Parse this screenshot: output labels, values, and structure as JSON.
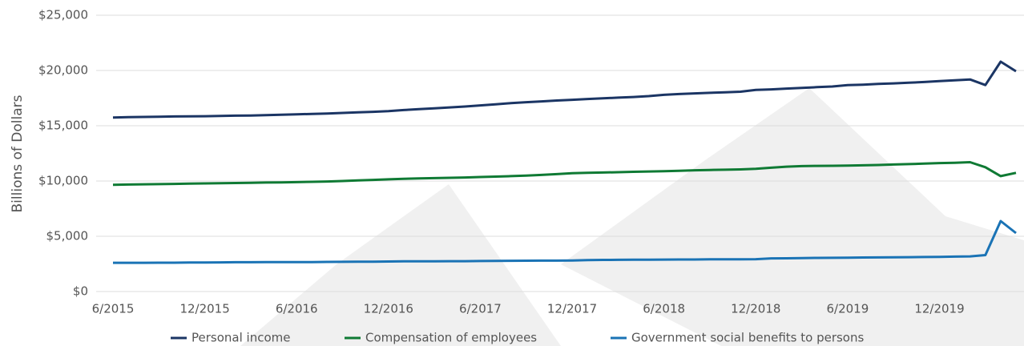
{
  "chart_data": {
    "type": "line",
    "y_label": "Billions of Dollars",
    "categories": [
      "6/2015",
      null,
      null,
      null,
      null,
      null,
      "12/2015",
      null,
      null,
      null,
      null,
      null,
      "6/2016",
      null,
      null,
      null,
      null,
      null,
      "12/2016",
      null,
      null,
      null,
      null,
      null,
      "6/2017",
      null,
      null,
      null,
      null,
      null,
      "12/2017",
      null,
      null,
      null,
      null,
      null,
      "6/2018",
      null,
      null,
      null,
      null,
      null,
      "12/2018",
      null,
      null,
      null,
      null,
      null,
      "6/2019",
      null,
      null,
      null,
      null,
      null,
      "12/2019",
      null,
      null,
      null,
      null,
      null
    ],
    "series": [
      {
        "name": "Personal income",
        "color": "#1b3564",
        "values": [
          15750,
          15780,
          15800,
          15820,
          15840,
          15850,
          15860,
          15890,
          15910,
          15930,
          15960,
          15990,
          16030,
          16070,
          16110,
          16160,
          16210,
          16260,
          16320,
          16420,
          16500,
          16580,
          16660,
          16740,
          16840,
          16940,
          17040,
          17130,
          17200,
          17280,
          17350,
          17420,
          17480,
          17540,
          17600,
          17680,
          17800,
          17870,
          17930,
          17980,
          18020,
          18080,
          18240,
          18290,
          18360,
          18420,
          18490,
          18550,
          18680,
          18720,
          18780,
          18830,
          18890,
          18960,
          19040,
          19110,
          19190,
          18680,
          20800,
          19930
        ]
      },
      {
        "name": "Compensation of employees",
        "color": "#0f7a34",
        "values": [
          9650,
          9680,
          9700,
          9720,
          9740,
          9760,
          9780,
          9800,
          9820,
          9840,
          9860,
          9880,
          9900,
          9930,
          9960,
          10000,
          10050,
          10100,
          10150,
          10200,
          10230,
          10260,
          10290,
          10320,
          10360,
          10400,
          10440,
          10490,
          10550,
          10620,
          10700,
          10740,
          10770,
          10800,
          10830,
          10860,
          10890,
          10930,
          10970,
          11000,
          11020,
          11050,
          11100,
          11200,
          11300,
          11350,
          11370,
          11380,
          11390,
          11420,
          11450,
          11490,
          11530,
          11570,
          11620,
          11650,
          11700,
          11250,
          10440,
          10740
        ]
      },
      {
        "name": "Government social benefits to persons",
        "color": "#1a73b5",
        "values": [
          2600,
          2600,
          2600,
          2610,
          2610,
          2620,
          2620,
          2640,
          2650,
          2650,
          2660,
          2660,
          2670,
          2670,
          2680,
          2690,
          2700,
          2700,
          2720,
          2730,
          2740,
          2740,
          2750,
          2750,
          2760,
          2770,
          2780,
          2790,
          2800,
          2800,
          2810,
          2850,
          2860,
          2870,
          2880,
          2880,
          2890,
          2900,
          2900,
          2910,
          2920,
          2920,
          2930,
          3000,
          3010,
          3030,
          3040,
          3050,
          3060,
          3080,
          3090,
          3100,
          3110,
          3120,
          3130,
          3160,
          3180,
          3300,
          6380,
          5290
        ]
      }
    ],
    "ylim": [
      0,
      25000
    ],
    "yticks": [
      {
        "value": 0,
        "label": "$0"
      },
      {
        "value": 5000,
        "label": "$5,000"
      },
      {
        "value": 10000,
        "label": "$10,000"
      },
      {
        "value": 15000,
        "label": "$15,000"
      },
      {
        "value": 20000,
        "label": "$20,000"
      },
      {
        "value": 25000,
        "label": "$25,000"
      }
    ],
    "grid": true,
    "legend": "bottom"
  }
}
